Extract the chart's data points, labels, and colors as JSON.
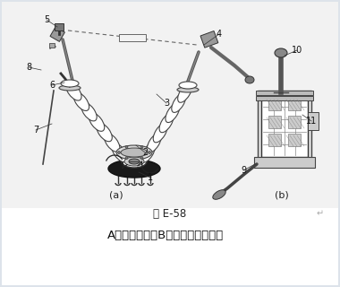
{
  "title": "图 E-58",
  "caption": "A、本体结构；B、活动出线座结构",
  "label_a": "(a)",
  "label_b": "(b)",
  "bg_color": "#e8edf2",
  "fig_bg": "#dde3ea",
  "title_fontsize": 8.5,
  "caption_fontsize": 9.5,
  "sub_label_fontsize": 8,
  "number_fontsize": 7,
  "lc": "#2a2a2a",
  "lw_main": 1.0,
  "lw_thin": 0.6
}
